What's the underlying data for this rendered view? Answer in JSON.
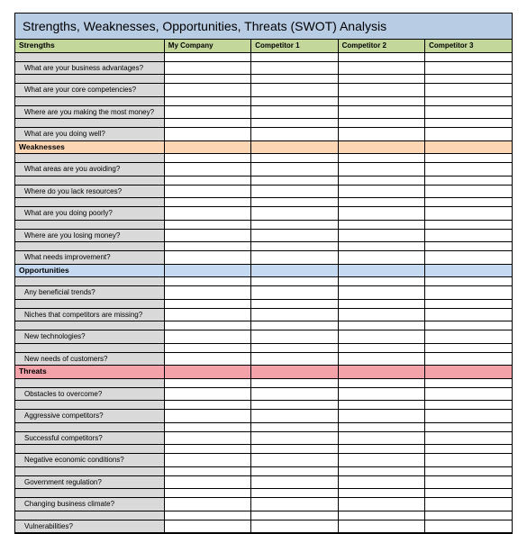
{
  "title": "Strengths, Weaknesses, Opportunities, Threats (SWOT) Analysis",
  "title_bg": "#b8cce4",
  "columns": [
    "My Company",
    "Competitor 1",
    "Competitor 2",
    "Competitor 3"
  ],
  "header_row_bg": "#c4d79b",
  "label_col_bg": "#d9d9d9",
  "border_color": "#000000",
  "sections": [
    {
      "name": "Strengths",
      "bg": "#c4d79b",
      "questions": [
        "What are your business advantages?",
        "What are your core competencies?",
        "Where are you making the most money?",
        "What are you doing well?"
      ]
    },
    {
      "name": "Weaknesses",
      "bg": "#fcd5b4",
      "questions": [
        "What areas are you avoiding?",
        "Where do you lack resources?",
        "What are you doing poorly?",
        "Where are you losing money?",
        "What needs improvement?"
      ]
    },
    {
      "name": "Opportunities",
      "bg": "#c5d9f1",
      "questions": [
        "Any beneficial trends?",
        "Niches that competitors are missing?",
        "New technologies?",
        "New needs of customers?"
      ]
    },
    {
      "name": "Threats",
      "bg": "#f2a2a8",
      "questions": [
        "Obstacles to overcome?",
        "Aggressive competitors?",
        "Successful competitors?",
        "Negative economic conditions?",
        "Government regulation?",
        "Changing business climate?",
        "Vulnerabilities?"
      ]
    }
  ]
}
